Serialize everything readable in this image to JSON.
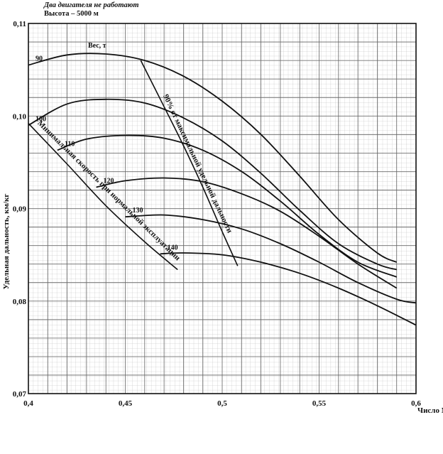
{
  "header": {
    "line1": "Два двигателя не работают",
    "line2": "Высота – 5000 м"
  },
  "chart_data": {
    "type": "line",
    "xlabel": "Число М",
    "ylabel": "Удельная дальность, км/кг",
    "xlim": [
      0.4,
      0.6
    ],
    "ylim": [
      0.07,
      0.11
    ],
    "x_ticks": [
      "0,4",
      "0,45",
      "0,5",
      "0,55",
      "0,6"
    ],
    "y_ticks": [
      "0,07",
      "0,08",
      "0,09",
      "0,10",
      "0,11"
    ],
    "grid": true,
    "legend_title": "Вес, т",
    "series": [
      {
        "name": "90",
        "x": [
          0.4,
          0.42,
          0.44,
          0.46,
          0.48,
          0.5,
          0.52,
          0.54,
          0.56,
          0.58,
          0.59
        ],
        "y": [
          0.1055,
          0.1066,
          0.1067,
          0.106,
          0.1043,
          0.1016,
          0.098,
          0.0935,
          0.0888,
          0.0852,
          0.0842
        ]
      },
      {
        "name": "100",
        "x": [
          0.4,
          0.42,
          0.44,
          0.46,
          0.48,
          0.5,
          0.52,
          0.54,
          0.56,
          0.58,
          0.59
        ],
        "y": [
          0.099,
          0.1013,
          0.1018,
          0.1014,
          0.0998,
          0.0973,
          0.0938,
          0.0898,
          0.0862,
          0.084,
          0.0834
        ]
      },
      {
        "name": "110",
        "x": [
          0.415,
          0.43,
          0.45,
          0.47,
          0.49,
          0.51,
          0.53,
          0.55,
          0.57,
          0.59
        ],
        "y": [
          0.0963,
          0.0975,
          0.0979,
          0.0976,
          0.0963,
          0.094,
          0.0908,
          0.0872,
          0.0842,
          0.0826
        ]
      },
      {
        "name": "120",
        "x": [
          0.435,
          0.45,
          0.47,
          0.49,
          0.51,
          0.53,
          0.55,
          0.57,
          0.59
        ],
        "y": [
          0.0923,
          0.093,
          0.0933,
          0.0929,
          0.0916,
          0.0897,
          0.087,
          0.084,
          0.0814
        ]
      },
      {
        "name": "130",
        "x": [
          0.45,
          0.47,
          0.49,
          0.51,
          0.53,
          0.55,
          0.57,
          0.59,
          0.6
        ],
        "y": [
          0.0891,
          0.0893,
          0.0888,
          0.0878,
          0.0862,
          0.0842,
          0.082,
          0.0802,
          0.0798
        ]
      },
      {
        "name": "140",
        "x": [
          0.468,
          0.48,
          0.5,
          0.52,
          0.54,
          0.56,
          0.58,
          0.6
        ],
        "y": [
          0.0851,
          0.0852,
          0.085,
          0.0842,
          0.083,
          0.0814,
          0.0795,
          0.0774
        ]
      }
    ],
    "boundary_lines": [
      {
        "label": "Минимальная скорость при нормальной эксплуатации",
        "x": [
          0.4,
          0.42,
          0.44,
          0.46,
          0.477
        ],
        "y": [
          0.0992,
          0.0948,
          0.0903,
          0.0864,
          0.0834
        ]
      },
      {
        "label": "90% от максимальной удельной дальности",
        "x": [
          0.458,
          0.47,
          0.48,
          0.49,
          0.5,
          0.508
        ],
        "y": [
          0.106,
          0.101,
          0.0968,
          0.0923,
          0.0875,
          0.0838
        ]
      }
    ]
  }
}
